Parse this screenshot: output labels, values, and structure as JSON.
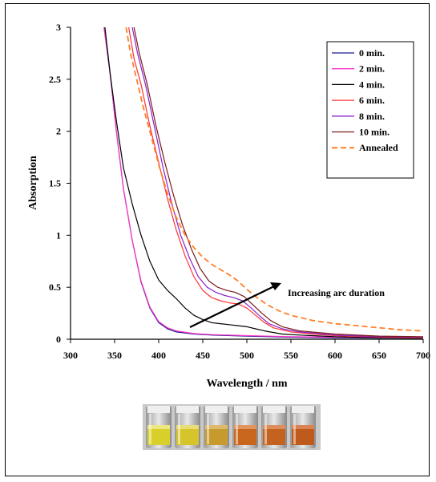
{
  "chart_data": {
    "type": "line",
    "xlabel": "Wavelength / nm",
    "ylabel": "Absorption",
    "xlim": [
      300,
      700
    ],
    "ylim": [
      0,
      3
    ],
    "xticks": [
      300,
      350,
      400,
      450,
      500,
      550,
      600,
      650,
      700
    ],
    "yticks": [
      0,
      0.5,
      1,
      1.5,
      2,
      2.5,
      3
    ],
    "ytick_labels": [
      "0",
      "0.5",
      "1",
      "1.5",
      "2",
      "2.5",
      "3"
    ],
    "grid": false,
    "legend_position": "top-right",
    "annotation": "Increasing arc duration",
    "series": [
      {
        "name": "0 min.",
        "color": "#1a1a8c",
        "dash": false,
        "points": [
          [
            338,
            3.0
          ],
          [
            345,
            2.55
          ],
          [
            352,
            2.0
          ],
          [
            360,
            1.45
          ],
          [
            370,
            0.95
          ],
          [
            380,
            0.55
          ],
          [
            390,
            0.3
          ],
          [
            400,
            0.16
          ],
          [
            410,
            0.1
          ],
          [
            420,
            0.07
          ],
          [
            440,
            0.05
          ],
          [
            460,
            0.04
          ],
          [
            500,
            0.03
          ],
          [
            550,
            0.02
          ],
          [
            600,
            0.015
          ],
          [
            700,
            0.01
          ]
        ]
      },
      {
        "name": "2 min.",
        "color": "#ff33cc",
        "dash": false,
        "points": [
          [
            338,
            3.0
          ],
          [
            345,
            2.55
          ],
          [
            352,
            2.0
          ],
          [
            360,
            1.45
          ],
          [
            370,
            0.95
          ],
          [
            380,
            0.56
          ],
          [
            390,
            0.31
          ],
          [
            400,
            0.17
          ],
          [
            410,
            0.11
          ],
          [
            420,
            0.08
          ],
          [
            440,
            0.055
          ],
          [
            460,
            0.045
          ],
          [
            500,
            0.035
          ],
          [
            550,
            0.025
          ],
          [
            600,
            0.02
          ],
          [
            700,
            0.012
          ]
        ]
      },
      {
        "name": "4 min.",
        "color": "#000000",
        "dash": false,
        "points": [
          [
            339,
            3.0
          ],
          [
            345,
            2.55
          ],
          [
            352,
            2.1
          ],
          [
            360,
            1.65
          ],
          [
            370,
            1.3
          ],
          [
            380,
            1.0
          ],
          [
            390,
            0.75
          ],
          [
            400,
            0.57
          ],
          [
            410,
            0.47
          ],
          [
            420,
            0.39
          ],
          [
            430,
            0.3
          ],
          [
            440,
            0.23
          ],
          [
            450,
            0.19
          ],
          [
            460,
            0.16
          ],
          [
            470,
            0.15
          ],
          [
            480,
            0.14
          ],
          [
            490,
            0.13
          ],
          [
            500,
            0.12
          ],
          [
            510,
            0.1
          ],
          [
            520,
            0.08
          ],
          [
            540,
            0.05
          ],
          [
            560,
            0.04
          ],
          [
            600,
            0.025
          ],
          [
            650,
            0.015
          ],
          [
            700,
            0.01
          ]
        ]
      },
      {
        "name": "6 min.",
        "color": "#ff3333",
        "dash": false,
        "points": [
          [
            366,
            3.0
          ],
          [
            372,
            2.7
          ],
          [
            380,
            2.45
          ],
          [
            390,
            2.05
          ],
          [
            400,
            1.7
          ],
          [
            410,
            1.35
          ],
          [
            420,
            1.05
          ],
          [
            430,
            0.8
          ],
          [
            440,
            0.6
          ],
          [
            450,
            0.47
          ],
          [
            460,
            0.4
          ],
          [
            470,
            0.37
          ],
          [
            480,
            0.35
          ],
          [
            490,
            0.34
          ],
          [
            500,
            0.3
          ],
          [
            510,
            0.23
          ],
          [
            520,
            0.16
          ],
          [
            530,
            0.11
          ],
          [
            550,
            0.07
          ],
          [
            575,
            0.05
          ],
          [
            600,
            0.035
          ],
          [
            650,
            0.02
          ],
          [
            700,
            0.015
          ]
        ]
      },
      {
        "name": "8 min.",
        "color": "#8822cc",
        "dash": false,
        "points": [
          [
            370,
            3.0
          ],
          [
            376,
            2.75
          ],
          [
            385,
            2.45
          ],
          [
            395,
            2.05
          ],
          [
            405,
            1.65
          ],
          [
            415,
            1.3
          ],
          [
            425,
            1.0
          ],
          [
            435,
            0.78
          ],
          [
            445,
            0.6
          ],
          [
            455,
            0.5
          ],
          [
            465,
            0.45
          ],
          [
            475,
            0.42
          ],
          [
            485,
            0.4
          ],
          [
            495,
            0.37
          ],
          [
            505,
            0.3
          ],
          [
            515,
            0.22
          ],
          [
            525,
            0.15
          ],
          [
            540,
            0.1
          ],
          [
            560,
            0.07
          ],
          [
            600,
            0.04
          ],
          [
            650,
            0.025
          ],
          [
            700,
            0.02
          ]
        ]
      },
      {
        "name": "10 min.",
        "color": "#7a1a1a",
        "dash": false,
        "points": [
          [
            372,
            3.0
          ],
          [
            378,
            2.75
          ],
          [
            387,
            2.45
          ],
          [
            397,
            2.05
          ],
          [
            407,
            1.7
          ],
          [
            417,
            1.38
          ],
          [
            427,
            1.1
          ],
          [
            437,
            0.87
          ],
          [
            447,
            0.68
          ],
          [
            457,
            0.56
          ],
          [
            467,
            0.5
          ],
          [
            477,
            0.47
          ],
          [
            487,
            0.45
          ],
          [
            497,
            0.41
          ],
          [
            507,
            0.33
          ],
          [
            517,
            0.25
          ],
          [
            527,
            0.18
          ],
          [
            540,
            0.12
          ],
          [
            560,
            0.08
          ],
          [
            600,
            0.05
          ],
          [
            650,
            0.03
          ],
          [
            700,
            0.025
          ]
        ]
      },
      {
        "name": "Annealed",
        "color": "#ff7f27",
        "dash": true,
        "points": [
          [
            363,
            3.0
          ],
          [
            368,
            2.75
          ],
          [
            375,
            2.5
          ],
          [
            382,
            2.25
          ],
          [
            390,
            2.0
          ],
          [
            400,
            1.68
          ],
          [
            410,
            1.4
          ],
          [
            420,
            1.17
          ],
          [
            430,
            1.0
          ],
          [
            440,
            0.88
          ],
          [
            450,
            0.79
          ],
          [
            460,
            0.72
          ],
          [
            470,
            0.67
          ],
          [
            480,
            0.62
          ],
          [
            490,
            0.56
          ],
          [
            500,
            0.48
          ],
          [
            510,
            0.41
          ],
          [
            520,
            0.35
          ],
          [
            530,
            0.3
          ],
          [
            540,
            0.26
          ],
          [
            550,
            0.23
          ],
          [
            575,
            0.18
          ],
          [
            600,
            0.15
          ],
          [
            625,
            0.13
          ],
          [
            650,
            0.11
          ],
          [
            675,
            0.09
          ],
          [
            700,
            0.08
          ]
        ]
      }
    ]
  }
}
